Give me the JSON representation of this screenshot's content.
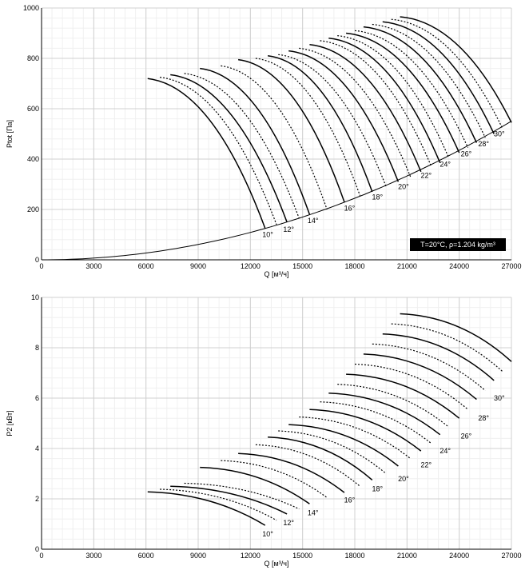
{
  "chart_data": [
    {
      "type": "line",
      "ylabel": "Ptot [Па]",
      "xlabel": "Q [м³/ч]",
      "xlim": [
        0,
        27000
      ],
      "ylim": [
        0,
        1000
      ],
      "xticks": [
        "0",
        "3000",
        "6000",
        "9000",
        "12000",
        "15000",
        "18000",
        "21000",
        "24000",
        "27000"
      ],
      "yticks": [
        "0",
        "200",
        "400",
        "600",
        "800",
        "1000"
      ],
      "grid": true,
      "note": "T=20°C, ρ=1.204 kg/m³",
      "system_curve": {
        "k": 7.55e-07,
        "x_end": 27000
      },
      "angle_labels": [
        {
          "text": "10°",
          "x": 13000,
          "y": 100
        },
        {
          "text": "12°",
          "x": 14200,
          "y": 120
        },
        {
          "text": "14°",
          "x": 15600,
          "y": 155
        },
        {
          "text": "16°",
          "x": 17700,
          "y": 205
        },
        {
          "text": "18°",
          "x": 19300,
          "y": 250
        },
        {
          "text": "20°",
          "x": 20800,
          "y": 290
        },
        {
          "text": "22°",
          "x": 22100,
          "y": 335
        },
        {
          "text": "24°",
          "x": 23200,
          "y": 380
        },
        {
          "text": "26°",
          "x": 24400,
          "y": 420
        },
        {
          "text": "28°",
          "x": 25400,
          "y": 460
        },
        {
          "text": "30°",
          "x": 26300,
          "y": 500
        }
      ],
      "series": [
        {
          "dashed": false,
          "x0": 6100,
          "y0": 720,
          "x1": 12850,
          "y1": 125
        },
        {
          "dashed": true,
          "x0": 6800,
          "y0": 725,
          "x1": 13500,
          "y1": 140
        },
        {
          "dashed": false,
          "x0": 7400,
          "y0": 735,
          "x1": 14100,
          "y1": 150
        },
        {
          "dashed": true,
          "x0": 8200,
          "y0": 740,
          "x1": 14800,
          "y1": 165
        },
        {
          "dashed": false,
          "x0": 9100,
          "y0": 760,
          "x1": 15400,
          "y1": 180
        },
        {
          "dashed": true,
          "x0": 10300,
          "y0": 770,
          "x1": 16400,
          "y1": 200
        },
        {
          "dashed": false,
          "x0": 11300,
          "y0": 795,
          "x1": 17400,
          "y1": 230
        },
        {
          "dashed": true,
          "x0": 12300,
          "y0": 800,
          "x1": 18300,
          "y1": 255
        },
        {
          "dashed": false,
          "x0": 13000,
          "y0": 810,
          "x1": 19000,
          "y1": 270
        },
        {
          "dashed": true,
          "x0": 13600,
          "y0": 815,
          "x1": 19800,
          "y1": 290
        },
        {
          "dashed": false,
          "x0": 14200,
          "y0": 830,
          "x1": 20500,
          "y1": 310
        },
        {
          "dashed": true,
          "x0": 14800,
          "y0": 840,
          "x1": 21200,
          "y1": 330
        },
        {
          "dashed": false,
          "x0": 15400,
          "y0": 855,
          "x1": 21800,
          "y1": 350
        },
        {
          "dashed": true,
          "x0": 16000,
          "y0": 870,
          "x1": 22400,
          "y1": 370
        },
        {
          "dashed": false,
          "x0": 16500,
          "y0": 880,
          "x1": 22900,
          "y1": 385
        },
        {
          "dashed": true,
          "x0": 17000,
          "y0": 890,
          "x1": 23400,
          "y1": 405
        },
        {
          "dashed": false,
          "x0": 17500,
          "y0": 900,
          "x1": 24000,
          "y1": 425
        },
        {
          "dashed": true,
          "x0": 18000,
          "y0": 910,
          "x1": 24500,
          "y1": 445
        },
        {
          "dashed": false,
          "x0": 18500,
          "y0": 925,
          "x1": 25000,
          "y1": 465
        },
        {
          "dashed": true,
          "x0": 19000,
          "y0": 935,
          "x1": 25500,
          "y1": 485
        },
        {
          "dashed": false,
          "x0": 19600,
          "y0": 945,
          "x1": 26000,
          "y1": 500
        },
        {
          "dashed": true,
          "x0": 20100,
          "y0": 955,
          "x1": 26500,
          "y1": 520
        },
        {
          "dashed": false,
          "x0": 20600,
          "y0": 965,
          "x1": 27000,
          "y1": 545
        }
      ]
    },
    {
      "type": "line",
      "ylabel": "P2 [кВт]",
      "xlabel": "Q [м³/ч]",
      "xlim": [
        0,
        27000
      ],
      "ylim": [
        0,
        10
      ],
      "xticks": [
        "0",
        "3000",
        "6000",
        "9000",
        "12000",
        "15000",
        "18000",
        "21000",
        "24000",
        "27000"
      ],
      "yticks": [
        "0",
        "2",
        "4",
        "6",
        "8",
        "10"
      ],
      "grid": true,
      "angle_labels": [
        {
          "text": "10°",
          "x": 13000,
          "y": 0.6
        },
        {
          "text": "12°",
          "x": 14200,
          "y": 1.05
        },
        {
          "text": "14°",
          "x": 15600,
          "y": 1.45
        },
        {
          "text": "16°",
          "x": 17700,
          "y": 1.95
        },
        {
          "text": "18°",
          "x": 19300,
          "y": 2.4
        },
        {
          "text": "20°",
          "x": 20800,
          "y": 2.8
        },
        {
          "text": "22°",
          "x": 22100,
          "y": 3.35
        },
        {
          "text": "24°",
          "x": 23200,
          "y": 3.9
        },
        {
          "text": "26°",
          "x": 24400,
          "y": 4.5
        },
        {
          "text": "28°",
          "x": 25400,
          "y": 5.2
        },
        {
          "text": "30°",
          "x": 26300,
          "y": 6.0
        }
      ],
      "series": [
        {
          "dashed": false,
          "x0": 6100,
          "y0": 2.28,
          "x1": 12850,
          "y1": 0.95
        },
        {
          "dashed": true,
          "x0": 6800,
          "y0": 2.38,
          "x1": 13500,
          "y1": 1.15
        },
        {
          "dashed": false,
          "x0": 7400,
          "y0": 2.5,
          "x1": 14100,
          "y1": 1.4
        },
        {
          "dashed": true,
          "x0": 8200,
          "y0": 2.62,
          "x1": 14800,
          "y1": 1.6
        },
        {
          "dashed": false,
          "x0": 9100,
          "y0": 3.25,
          "x1": 15400,
          "y1": 1.8
        },
        {
          "dashed": true,
          "x0": 10300,
          "y0": 3.52,
          "x1": 16400,
          "y1": 2.05
        },
        {
          "dashed": false,
          "x0": 11300,
          "y0": 3.8,
          "x1": 17400,
          "y1": 2.25
        },
        {
          "dashed": true,
          "x0": 12300,
          "y0": 4.15,
          "x1": 18300,
          "y1": 2.5
        },
        {
          "dashed": false,
          "x0": 13000,
          "y0": 4.45,
          "x1": 19000,
          "y1": 2.75
        },
        {
          "dashed": true,
          "x0": 13600,
          "y0": 4.7,
          "x1": 19800,
          "y1": 3.0
        },
        {
          "dashed": false,
          "x0": 14200,
          "y0": 4.95,
          "x1": 20500,
          "y1": 3.3
        },
        {
          "dashed": true,
          "x0": 14800,
          "y0": 5.25,
          "x1": 21200,
          "y1": 3.6
        },
        {
          "dashed": false,
          "x0": 15400,
          "y0": 5.55,
          "x1": 21800,
          "y1": 3.9
        },
        {
          "dashed": true,
          "x0": 16000,
          "y0": 5.85,
          "x1": 22400,
          "y1": 4.2
        },
        {
          "dashed": false,
          "x0": 16500,
          "y0": 6.2,
          "x1": 22900,
          "y1": 4.55
        },
        {
          "dashed": true,
          "x0": 17000,
          "y0": 6.55,
          "x1": 23400,
          "y1": 4.85
        },
        {
          "dashed": false,
          "x0": 17500,
          "y0": 6.95,
          "x1": 24000,
          "y1": 5.2
        },
        {
          "dashed": true,
          "x0": 18000,
          "y0": 7.35,
          "x1": 24500,
          "y1": 5.55
        },
        {
          "dashed": false,
          "x0": 18500,
          "y0": 7.75,
          "x1": 25000,
          "y1": 5.95
        },
        {
          "dashed": true,
          "x0": 19000,
          "y0": 8.15,
          "x1": 25500,
          "y1": 6.3
        },
        {
          "dashed": false,
          "x0": 19600,
          "y0": 8.55,
          "x1": 26000,
          "y1": 6.7
        },
        {
          "dashed": true,
          "x0": 20100,
          "y0": 8.95,
          "x1": 26500,
          "y1": 7.05
        },
        {
          "dashed": false,
          "x0": 20600,
          "y0": 9.35,
          "x1": 27000,
          "y1": 7.45
        }
      ]
    }
  ]
}
